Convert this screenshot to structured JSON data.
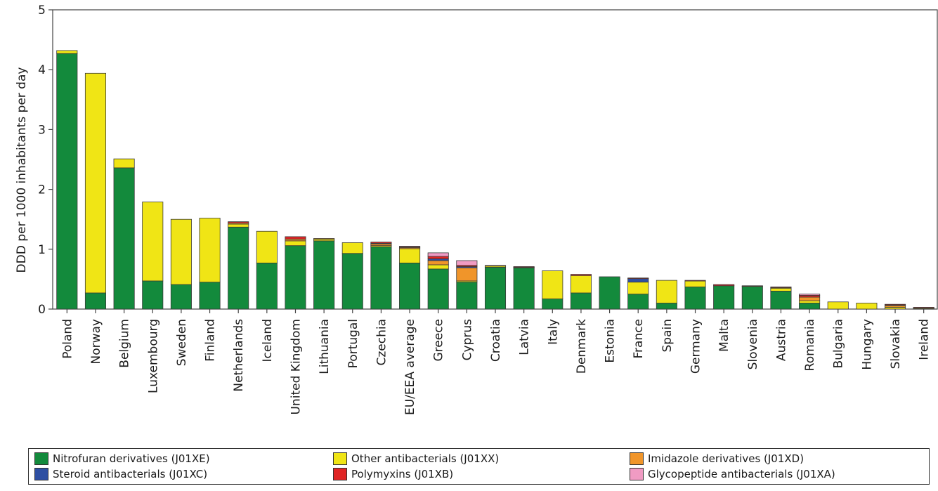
{
  "chart_data": {
    "type": "bar",
    "stacked": true,
    "title": "",
    "xlabel": "",
    "ylabel": "DDD per 1000 inhabitants per day",
    "ylim": [
      0,
      5
    ],
    "yticks": [
      0,
      1,
      2,
      3,
      4,
      5
    ],
    "grid": false,
    "legend_position": "bottom",
    "categories": [
      "Poland",
      "Norway",
      "Belgium",
      "Luxembourg",
      "Sweden",
      "Finland",
      "Netherlands",
      "Iceland",
      "United Kingdom",
      "Lithuania",
      "Portugal",
      "Czechia",
      "EU/EEA average",
      "Greece",
      "Cyprus",
      "Croatia",
      "Latvia",
      "Italy",
      "Denmark",
      "Estonia",
      "France",
      "Spain",
      "Germany",
      "Malta",
      "Slovenia",
      "Austria",
      "Romania",
      "Bulgaria",
      "Hungary",
      "Slovakia",
      "Ireland"
    ],
    "series": [
      {
        "name": "Nitrofuran derivatives (J01XE)",
        "color": "#138a3c",
        "values": [
          4.27,
          0.27,
          2.36,
          0.47,
          0.41,
          0.45,
          1.37,
          0.77,
          1.06,
          1.14,
          0.93,
          1.04,
          0.77,
          0.67,
          0.45,
          0.7,
          0.69,
          0.17,
          0.27,
          0.54,
          0.25,
          0.1,
          0.37,
          0.39,
          0.38,
          0.3,
          0.1,
          0,
          0,
          0,
          0
        ]
      },
      {
        "name": "Other antibacterials (J01XX)",
        "color": "#f0e515",
        "values": [
          0.05,
          3.67,
          0.15,
          1.32,
          1.09,
          1.07,
          0.05,
          0.53,
          0.08,
          0.03,
          0.18,
          0.02,
          0.24,
          0.07,
          0.02,
          0.02,
          0.01,
          0.47,
          0.29,
          0,
          0.2,
          0.38,
          0.1,
          0,
          0,
          0.05,
          0.04,
          0.12,
          0.1,
          0.03,
          0.01
        ]
      },
      {
        "name": "Imidazole derivatives (J01XD)",
        "color": "#f0952a",
        "values": [
          0,
          0,
          0,
          0,
          0,
          0,
          0.02,
          0,
          0.03,
          0.01,
          0,
          0.03,
          0.02,
          0.07,
          0.22,
          0.01,
          0,
          0,
          0,
          0,
          0,
          0,
          0,
          0,
          0,
          0.01,
          0.06,
          0,
          0,
          0.03,
          0.01
        ]
      },
      {
        "name": "Steroid antibacterials (J01XC)",
        "color": "#2e4fa2",
        "values": [
          0,
          0,
          0,
          0,
          0,
          0,
          0,
          0,
          0,
          0,
          0,
          0.01,
          0.01,
          0.03,
          0.02,
          0,
          0,
          0,
          0,
          0,
          0.06,
          0,
          0,
          0,
          0,
          0,
          0,
          0,
          0,
          0.01,
          0
        ]
      },
      {
        "name": "Polymyxins (J01XB)",
        "color": "#e02424",
        "values": [
          0,
          0,
          0,
          0,
          0,
          0,
          0.02,
          0,
          0.04,
          0,
          0,
          0.02,
          0.01,
          0.04,
          0.02,
          0,
          0.01,
          0,
          0.02,
          0,
          0.01,
          0,
          0.01,
          0.02,
          0.01,
          0.01,
          0.03,
          0,
          0,
          0.01,
          0.01
        ]
      },
      {
        "name": "Glycopeptide antibacterials (J01XA)",
        "color": "#f09bc3",
        "values": [
          0,
          0,
          0,
          0,
          0,
          0,
          0,
          0,
          0,
          0,
          0,
          0,
          0,
          0.06,
          0.08,
          0,
          0,
          0,
          0,
          0,
          0,
          0,
          0,
          0,
          0,
          0,
          0.02,
          0,
          0,
          0,
          0
        ]
      }
    ]
  },
  "legend": {
    "items": [
      {
        "label": "Nitrofuran derivatives (J01XE)",
        "color": "#138a3c"
      },
      {
        "label": "Other antibacterials (J01XX)",
        "color": "#f0e515"
      },
      {
        "label": "Imidazole derivatives (J01XD)",
        "color": "#f0952a"
      },
      {
        "label": "Steroid antibacterials (J01XC)",
        "color": "#2e4fa2"
      },
      {
        "label": "Polymyxins (J01XB)",
        "color": "#e02424"
      },
      {
        "label": "Glycopeptide antibacterials (J01XA)",
        "color": "#f09bc3"
      }
    ]
  }
}
